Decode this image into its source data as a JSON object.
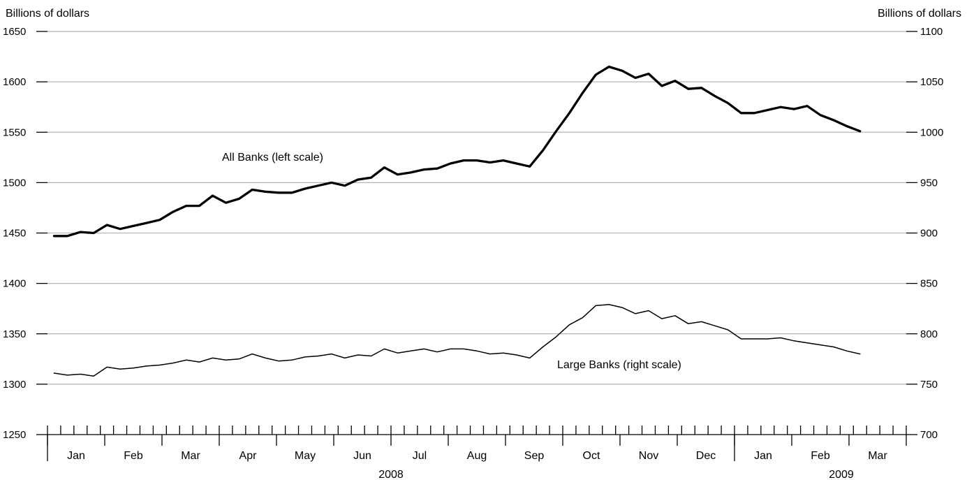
{
  "chart_data": {
    "type": "line",
    "left_axis": {
      "label": "Billions of dollars",
      "ylim": [
        1250,
        1650
      ],
      "ticks": [
        1250,
        1300,
        1350,
        1400,
        1450,
        1500,
        1550,
        1600,
        1650
      ]
    },
    "right_axis": {
      "label": "Billions of dollars",
      "ylim": [
        700,
        1100
      ],
      "ticks": [
        700,
        750,
        800,
        850,
        900,
        950,
        1000,
        1050,
        1100
      ]
    },
    "grid": true,
    "x_axis": {
      "months": [
        "Jan",
        "Feb",
        "Mar",
        "Apr",
        "May",
        "Jun",
        "Jul",
        "Aug",
        "Sep",
        "Oct",
        "Nov",
        "Dec",
        "Jan",
        "Feb",
        "Mar"
      ],
      "years": [
        {
          "label": "2008",
          "months": 12
        },
        {
          "label": "2009",
          "months": 3
        }
      ],
      "weeks_per_month": 4.3333
    },
    "series": [
      {
        "name": "All Banks (left scale)",
        "axis": "left",
        "values": [
          1447,
          1447,
          1451,
          1450,
          1458,
          1454,
          1457,
          1460,
          1463,
          1471,
          1477,
          1477,
          1487,
          1480,
          1484,
          1493,
          1491,
          1490,
          1490,
          1494,
          1497,
          1500,
          1497,
          1503,
          1505,
          1515,
          1508,
          1510,
          1513,
          1514,
          1519,
          1522,
          1522,
          1520,
          1522,
          1519,
          1516,
          1532,
          1551,
          1569,
          1589,
          1607,
          1615,
          1611,
          1604,
          1608,
          1596,
          1601,
          1593,
          1594,
          1586,
          1579,
          1569,
          1569,
          1572,
          1575,
          1573,
          1576,
          1567,
          1562,
          1556,
          1551
        ]
      },
      {
        "name": "Large Banks (right scale)",
        "axis": "right",
        "values": [
          761,
          759,
          760,
          758,
          767,
          765,
          766,
          768,
          769,
          771,
          774,
          772,
          776,
          774,
          775,
          780,
          776,
          773,
          774,
          777,
          778,
          780,
          776,
          779,
          778,
          785,
          781,
          783,
          785,
          782,
          785,
          785,
          783,
          780,
          781,
          779,
          776,
          787,
          797,
          809,
          816,
          828,
          829,
          826,
          820,
          823,
          815,
          818,
          810,
          812,
          808,
          804,
          795,
          795,
          795,
          796,
          793,
          791,
          789,
          787,
          783,
          780
        ]
      }
    ]
  }
}
